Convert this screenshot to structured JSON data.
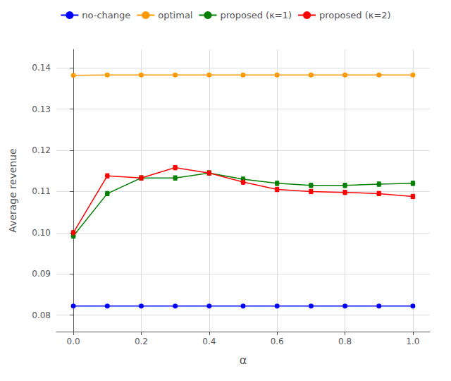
{
  "chart_data": {
    "type": "line",
    "xlabel": "α",
    "ylabel": "Average revenue",
    "x": [
      0.0,
      0.1,
      0.2,
      0.3,
      0.4,
      0.5,
      0.6,
      0.7,
      0.8,
      0.9,
      1.0
    ],
    "series": [
      {
        "name": "no-change",
        "color": "#0000ff",
        "marker": "circle",
        "values": [
          0.0822,
          0.0822,
          0.0822,
          0.0822,
          0.0822,
          0.0822,
          0.0822,
          0.0822,
          0.0822,
          0.0822,
          0.0822
        ],
        "errors": [
          0.0003,
          0.0003,
          0.0003,
          0.0003,
          0.0003,
          0.0003,
          0.0003,
          0.0003,
          0.0003,
          0.0003,
          0.0003
        ]
      },
      {
        "name": "optimal",
        "color": "#ff9900",
        "marker": "circle",
        "values": [
          0.1382,
          0.1383,
          0.1383,
          0.1383,
          0.1383,
          0.1383,
          0.1383,
          0.1383,
          0.1383,
          0.1383,
          0.1383
        ],
        "errors": [
          0.0003,
          0.0003,
          0.0003,
          0.0003,
          0.0003,
          0.0003,
          0.0003,
          0.0003,
          0.0003,
          0.0003,
          0.0003
        ]
      },
      {
        "name": "proposed (κ=1)",
        "color": "#008000",
        "marker": "circle",
        "values": [
          0.0992,
          0.1095,
          0.1133,
          0.1133,
          0.1145,
          0.113,
          0.112,
          0.1115,
          0.1115,
          0.1118,
          0.112
        ],
        "errors": [
          0.0005,
          0.0005,
          0.0005,
          0.0005,
          0.0005,
          0.0005,
          0.0005,
          0.0005,
          0.0005,
          0.0005,
          0.0005
        ]
      },
      {
        "name": "proposed (κ=2)",
        "color": "#ff0000",
        "marker": "circle",
        "values": [
          0.1,
          0.1138,
          0.1133,
          0.1158,
          0.1145,
          0.1123,
          0.1105,
          0.11,
          0.1098,
          0.1095,
          0.1088
        ],
        "errors": [
          0.0005,
          0.0005,
          0.0005,
          0.0005,
          0.0005,
          0.0005,
          0.0005,
          0.0005,
          0.0005,
          0.0005,
          0.0005
        ]
      }
    ],
    "xlim": [
      -0.05,
      1.05
    ],
    "xticks": [
      {
        "value": 0,
        "label": "0.0"
      },
      0.2,
      0.4,
      0.6,
      0.8,
      {
        "value": 1,
        "label": "1.0"
      }
    ],
    "ylim": [
      0.076,
      0.1445
    ],
    "yticks": [
      0.08,
      0.09,
      {
        "value": 0.1,
        "label": "0.10"
      },
      0.11,
      0.12,
      0.13,
      0.14
    ],
    "grid": true,
    "legend": "top"
  }
}
